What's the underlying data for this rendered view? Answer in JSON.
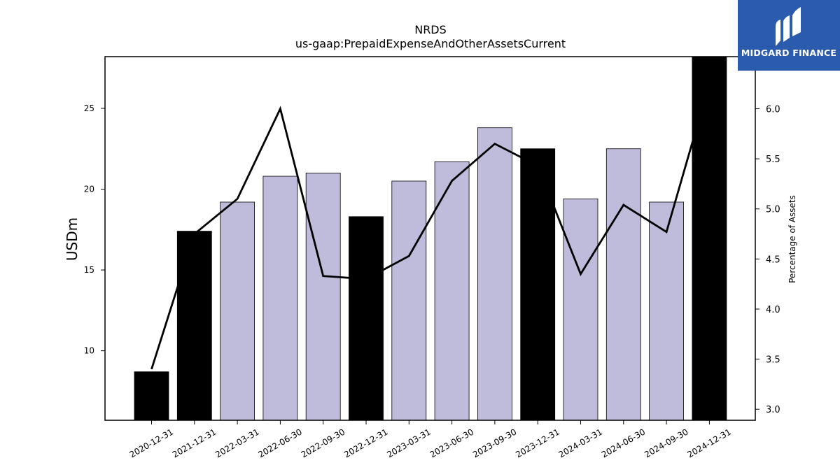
{
  "chart_data": {
    "type": "bar",
    "title": "NRDS",
    "subtitle": "us-gaap:PrepaidExpenseAndOtherAssetsCurrent",
    "ylabel": "USDm",
    "y2label": "Percentage of Assets",
    "categories": [
      "2020-12-31",
      "2021-12-31",
      "2022-03-31",
      "2022-06-30",
      "2022-09-30",
      "2022-12-31",
      "2023-03-31",
      "2023-06-30",
      "2023-09-30",
      "2023-12-31",
      "2024-03-31",
      "2024-06-30",
      "2024-09-30",
      "2024-12-31"
    ],
    "series": [
      {
        "type": "bar",
        "values": [
          8.7,
          17.4,
          19.2,
          20.8,
          21.0,
          18.3,
          20.5,
          21.7,
          23.8,
          22.5,
          19.4,
          22.5,
          19.2,
          28.2
        ],
        "annual": [
          true,
          true,
          false,
          false,
          false,
          true,
          false,
          false,
          false,
          true,
          false,
          false,
          false,
          true
        ]
      },
      {
        "type": "line",
        "axis": "right",
        "values": [
          3.4,
          4.75,
          5.1,
          6.0,
          4.33,
          4.3,
          4.53,
          5.28,
          5.65,
          5.43,
          4.35,
          5.04,
          4.77,
          6.25
        ]
      }
    ],
    "ylim": [
      5.7,
      28.2
    ],
    "y2lim": [
      2.89,
      6.52
    ],
    "yticks": [
      10,
      15,
      20,
      25
    ],
    "y2ticks": [
      "3.0",
      "3.5",
      "4.0",
      "4.5",
      "5.0",
      "5.5",
      "6.0"
    ],
    "colors": {
      "annual_bar": "#000000",
      "quarter_bar": "#bebbdb",
      "line": "#000000"
    },
    "grid": false
  },
  "logo": {
    "text": "MIDGARD FINANCE",
    "color": "#2b5bad"
  }
}
